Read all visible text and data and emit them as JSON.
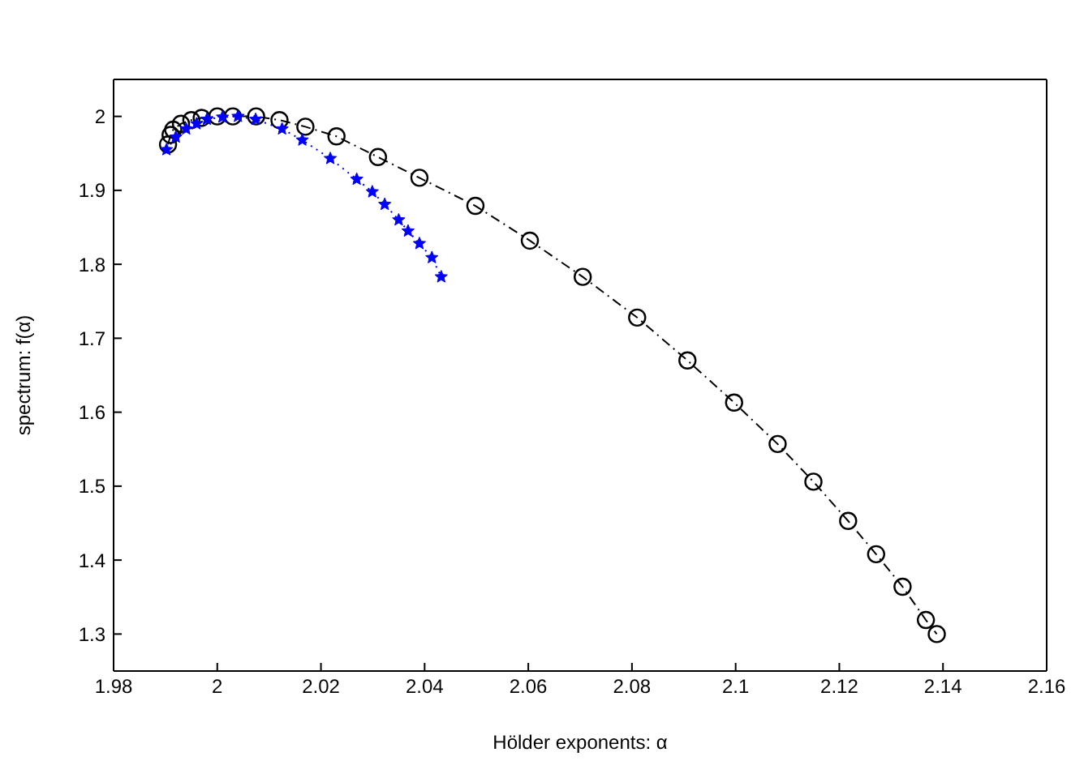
{
  "chart_data": {
    "type": "line",
    "xlabel": "Hölder exponents: α",
    "ylabel": "spectrum: f(α)",
    "xlim": [
      1.98,
      2.16
    ],
    "xticks": [
      1.98,
      2,
      2.02,
      2.04,
      2.06,
      2.08,
      2.1,
      2.12,
      2.14,
      2.16
    ],
    "ylim": [
      1.25,
      2.05
    ],
    "yticks": [
      1.3,
      1.4,
      1.5,
      1.6,
      1.7,
      1.8,
      1.9,
      2
    ],
    "series": [
      {
        "color": "#000000",
        "marker": "circle",
        "line_style": "dashdot",
        "x": [
          1.9905,
          1.991,
          1.9915,
          1.993,
          1.995,
          1.997,
          2.0,
          2.003,
          2.0075,
          2.012,
          2.017,
          2.023,
          2.031,
          2.039,
          2.0498,
          2.0603,
          2.0705,
          2.081,
          2.0907,
          2.0997,
          2.1081,
          2.115,
          2.1217,
          2.1271,
          2.1322,
          2.1367,
          2.1388
        ],
        "values": [
          1.962,
          1.975,
          1.982,
          1.99,
          1.995,
          1.998,
          2.0,
          2.0,
          2.0,
          1.995,
          1.986,
          1.973,
          1.945,
          1.917,
          1.879,
          1.832,
          1.783,
          1.728,
          1.67,
          1.613,
          1.557,
          1.506,
          1.453,
          1.408,
          1.364,
          1.319,
          1.3
        ]
      },
      {
        "color": "#0000ff",
        "marker": "star",
        "line_style": "dotted",
        "x": [
          1.9902,
          1.992,
          1.994,
          1.996,
          1.998,
          2.001,
          2.004,
          2.0074,
          2.0125,
          2.0164,
          2.0218,
          2.0269,
          2.0299,
          2.0323,
          2.035,
          2.0368,
          2.039,
          2.0414,
          2.0432
        ],
        "values": [
          1.955,
          1.972,
          1.983,
          1.99,
          1.996,
          1.999,
          2.0,
          1.996,
          1.983,
          1.968,
          1.943,
          1.915,
          1.898,
          1.881,
          1.86,
          1.845,
          1.828,
          1.809,
          1.783
        ]
      }
    ]
  }
}
